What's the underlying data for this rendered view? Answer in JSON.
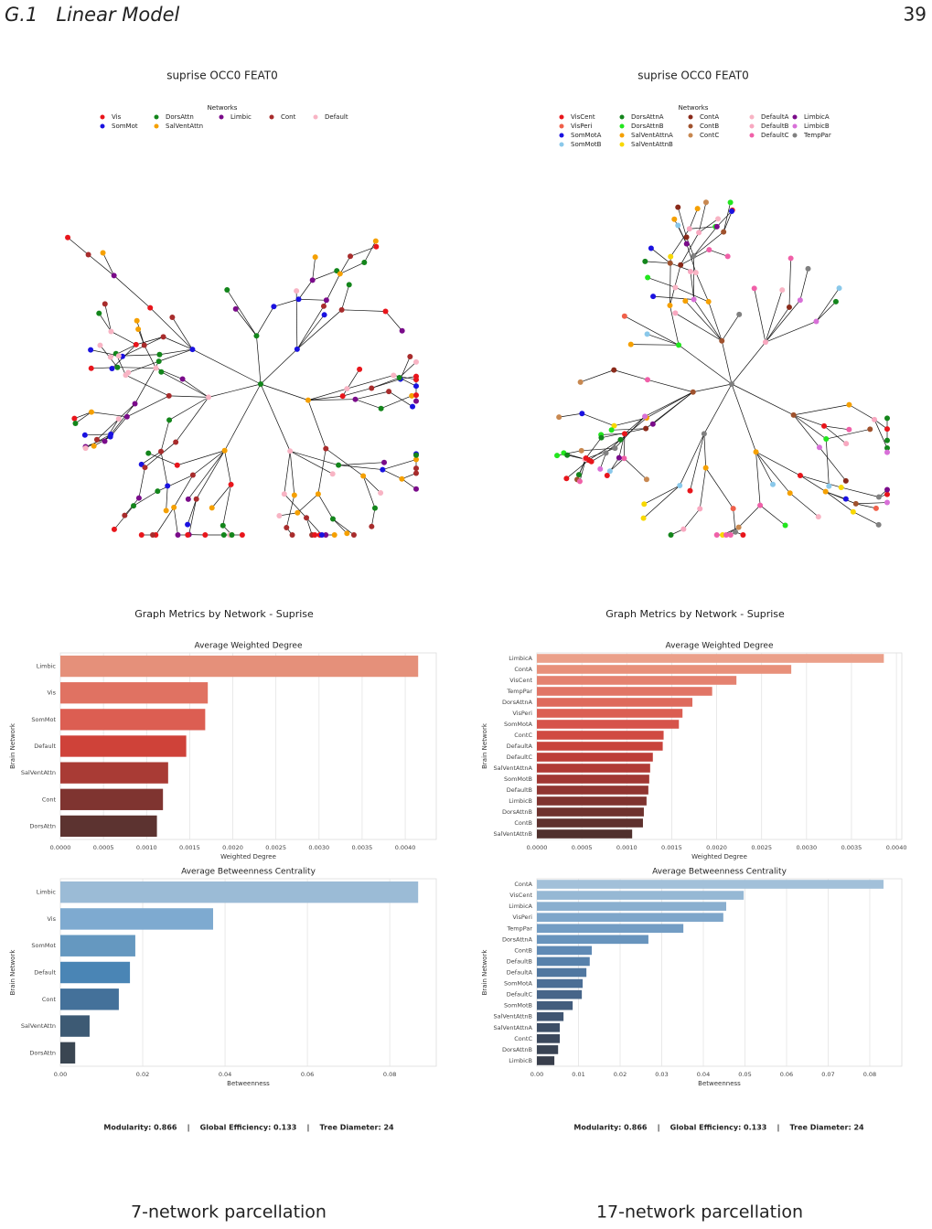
{
  "header": {
    "section": "G.1   Linear Model",
    "page_number": "39"
  },
  "panels": [
    {
      "graph_title": "suprise OCC0 FEAT0",
      "legend_title": "Networks",
      "legend": [
        {
          "name": "Vis",
          "color": "#e8151b"
        },
        {
          "name": "SomMot",
          "color": "#1a12e0"
        },
        {
          "name": "DorsAttn",
          "color": "#13851b"
        },
        {
          "name": "SalVentAttn",
          "color": "#f5a000"
        },
        {
          "name": "Limbic",
          "color": "#7a0b8a"
        },
        {
          "name": "Cont",
          "color": "#a82c2c"
        },
        {
          "name": "Default",
          "color": "#f8b4c4"
        }
      ],
      "metrics_title": "Graph Metrics by Network - Suprise",
      "stats": "Modularity: 0.866    |    Global Efficiency: 0.133    |    Tree Diameter: 24",
      "caption": "7-network parcellation"
    },
    {
      "graph_title": "suprise OCC0 FEAT0",
      "legend_title": "Networks",
      "legend": [
        {
          "name": "VisCent",
          "color": "#e8151b"
        },
        {
          "name": "VisPeri",
          "color": "#f0604a"
        },
        {
          "name": "SomMotA",
          "color": "#1a12e0"
        },
        {
          "name": "SomMotB",
          "color": "#8ac8ea"
        },
        {
          "name": "DorsAttnA",
          "color": "#13851b"
        },
        {
          "name": "DorsAttnB",
          "color": "#22e61e"
        },
        {
          "name": "SalVentAttnA",
          "color": "#f5a000"
        },
        {
          "name": "SalVentAttnB",
          "color": "#f8d800"
        },
        {
          "name": "ContA",
          "color": "#8a2a1a"
        },
        {
          "name": "ContB",
          "color": "#a0522d"
        },
        {
          "name": "ContC",
          "color": "#c88850"
        },
        {
          "name": "DefaultA",
          "color": "#f8b4c4"
        },
        {
          "name": "DefaultB",
          "color": "#f8a8c0"
        },
        {
          "name": "DefaultC",
          "color": "#f060a8"
        },
        {
          "name": "LimbicA",
          "color": "#7a0b8a"
        },
        {
          "name": "LimbicB",
          "color": "#d870d8"
        },
        {
          "name": "TempPar",
          "color": "#808080"
        }
      ],
      "metrics_title": "Graph Metrics by Network - Suprise",
      "stats": "Modularity: 0.866    |    Global Efficiency: 0.133    |    Tree Diameter: 24",
      "caption": "17-network parcellation"
    }
  ],
  "chart_data": [
    {
      "type": "bar",
      "orientation": "horizontal",
      "title": "Average Weighted Degree",
      "categories": [
        "Limbic",
        "Vis",
        "SomMot",
        "Default",
        "SalVentAttn",
        "Cont",
        "DorsAttn"
      ],
      "values": [
        0.00415,
        0.00171,
        0.00168,
        0.00146,
        0.00125,
        0.00119,
        0.00112
      ],
      "colors": [
        "#e5907a",
        "#e07262",
        "#dc5e52",
        "#cf4239",
        "#a93b35",
        "#7f3430",
        "#5c3330"
      ],
      "xlim": [
        0,
        0.00436
      ],
      "xticks": [
        {
          "value": 0,
          "label": "0.0000"
        },
        0.0005,
        {
          "value": 0.001,
          "label": "0.0010"
        },
        0.0015,
        {
          "value": 0.002,
          "label": "0.0020"
        },
        0.0025,
        {
          "value": 0.003,
          "label": "0.0030"
        },
        0.0035,
        {
          "value": 0.004,
          "label": "0.0040"
        }
      ],
      "xlabel": "Weighted Degree",
      "ylabel": "Brain Network",
      "grid": true
    },
    {
      "type": "bar",
      "orientation": "horizontal",
      "title": "Average Betweenness Centrality",
      "categories": [
        "Limbic",
        "Vis",
        "SomMot",
        "Default",
        "Cont",
        "SalVentAttn",
        "DorsAttn"
      ],
      "values": [
        0.0869,
        0.0371,
        0.0182,
        0.0169,
        0.0142,
        0.0071,
        0.0036
      ],
      "colors": [
        "#9bbbd6",
        "#7eaad0",
        "#6598c0",
        "#4a85b5",
        "#44719a",
        "#3d5a74",
        "#3a4652"
      ],
      "xlim": [
        0,
        0.0913
      ],
      "xticks": [
        {
          "value": 0,
          "label": "0.00"
        },
        0.02,
        0.04,
        0.06,
        0.08
      ],
      "xlabel": "Betweenness",
      "ylabel": "Brain Network",
      "grid": true
    },
    {
      "type": "bar",
      "orientation": "horizontal",
      "title": "Average Weighted Degree",
      "categories": [
        "LimbicA",
        "ContA",
        "VisCent",
        "TempPar",
        "DorsAttnA",
        "VisPeri",
        "SomMotA",
        "ContC",
        "DefaultA",
        "DefaultC",
        "SalVentAttnA",
        "SomMotB",
        "DefaultB",
        "LimbicB",
        "DorsAttnB",
        "ContB",
        "SalVentAttnB"
      ],
      "values": [
        0.00386,
        0.00283,
        0.00222,
        0.00195,
        0.00173,
        0.00162,
        0.00158,
        0.00141,
        0.0014,
        0.00129,
        0.00126,
        0.00125,
        0.00124,
        0.00122,
        0.00119,
        0.00118,
        0.00106
      ],
      "colors": [
        "#eba08a",
        "#e8907a",
        "#e48270",
        "#e17566",
        "#de6a5c",
        "#db5e52",
        "#d6534a",
        "#d04a42",
        "#c8433c",
        "#bd3e38",
        "#b03a35",
        "#a13733",
        "#903531",
        "#7f332f",
        "#6e322e",
        "#5e312e",
        "#4f302d"
      ],
      "xlim": [
        0,
        0.00406
      ],
      "xticks": [
        {
          "value": 0,
          "label": "0.0000"
        },
        0.0005,
        {
          "value": 0.001,
          "label": "0.0010"
        },
        0.0015,
        {
          "value": 0.002,
          "label": "0.0020"
        },
        0.0025,
        {
          "value": 0.003,
          "label": "0.0030"
        },
        0.0035,
        {
          "value": 0.004,
          "label": "0.0040"
        }
      ],
      "xlabel": "Weighted Degree",
      "ylabel": "Brain Network",
      "grid": true
    },
    {
      "type": "bar",
      "orientation": "horizontal",
      "title": "Average Betweenness Centrality",
      "categories": [
        "ContA",
        "VisCent",
        "LimbicA",
        "VisPeri",
        "TempPar",
        "DorsAttnA",
        "ContB",
        "DefaultB",
        "DefaultA",
        "SomMotA",
        "DefaultC",
        "SomMotB",
        "SalVentAttnB",
        "SalVentAttnA",
        "ContC",
        "DorsAttnB",
        "LimbicB"
      ],
      "values": [
        0.0833,
        0.0497,
        0.0455,
        0.0448,
        0.0352,
        0.0268,
        0.0132,
        0.0127,
        0.0119,
        0.011,
        0.0108,
        0.0086,
        0.0064,
        0.0055,
        0.0055,
        0.0051,
        0.0042
      ],
      "colors": [
        "#a2c0d9",
        "#96b8d4",
        "#8aafcf",
        "#7ea6ca",
        "#739dc4",
        "#6894bd",
        "#5f8ab5",
        "#5781ab",
        "#5077a0",
        "#4b6e95",
        "#476589",
        "#435d7d",
        "#405571",
        "#3d4e66",
        "#3b485c",
        "#394353",
        "#383e4b"
      ],
      "xlim": [
        0,
        0.0877
      ],
      "xticks": [
        {
          "value": 0,
          "label": "0.00"
        },
        0.01,
        0.02,
        0.03,
        0.04,
        0.05,
        0.06,
        0.07,
        0.08
      ],
      "xlabel": "Betweenness",
      "ylabel": "Brain Network",
      "grid": true
    }
  ]
}
